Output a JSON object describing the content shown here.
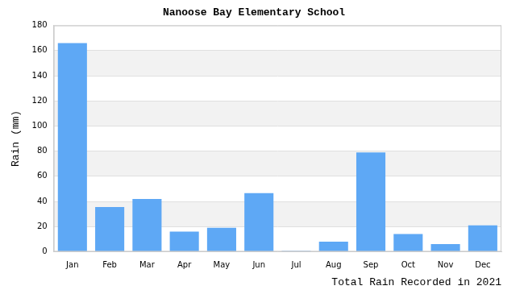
{
  "chart_data": {
    "type": "bar",
    "title": "Nanoose Bay Elementary School",
    "y_label": "Rain (mm)",
    "x_label": "Total Rain Recorded in 2021",
    "categories": [
      "Jan",
      "Feb",
      "Mar",
      "Apr",
      "May",
      "Jun",
      "Jul",
      "Aug",
      "Sep",
      "Oct",
      "Nov",
      "Dec"
    ],
    "values": [
      166,
      35.5,
      42,
      16,
      19,
      46.5,
      0.5,
      8,
      79,
      14,
      6,
      21
    ],
    "color": "#5ea8f5",
    "ylim": [
      0,
      180
    ],
    "yticks": [
      0,
      20,
      40,
      60,
      80,
      100,
      120,
      140,
      160,
      180
    ],
    "grid": true
  }
}
